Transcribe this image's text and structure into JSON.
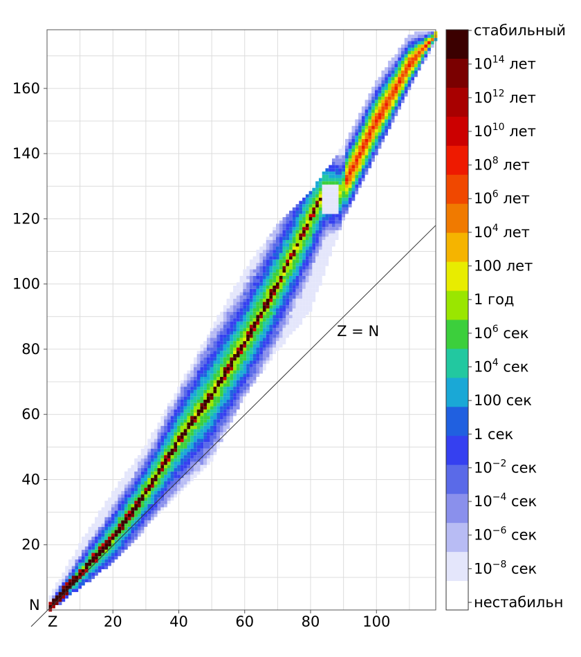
{
  "chart_data": {
    "type": "heatmap",
    "title": "",
    "xlabel": "Z",
    "ylabel": "N",
    "xlim": [
      0,
      118
    ],
    "ylim": [
      0,
      178
    ],
    "x_ticks": [
      20,
      40,
      60,
      80,
      100
    ],
    "y_ticks": [
      20,
      40,
      60,
      80,
      100,
      120,
      140,
      160
    ],
    "grid": true,
    "reference_line": {
      "label": "Z = N",
      "equation": "N = Z"
    },
    "colorbar": {
      "labels": [
        {
          "base": "стабильный",
          "sup": ""
        },
        {
          "base": "10",
          "sup": "14",
          "unit": " лет"
        },
        {
          "base": "10",
          "sup": "12",
          "unit": " лет"
        },
        {
          "base": "10",
          "sup": "10",
          "unit": " лет"
        },
        {
          "base": "10",
          "sup": "8",
          "unit": " лет"
        },
        {
          "base": "10",
          "sup": "6",
          "unit": " лет"
        },
        {
          "base": "10",
          "sup": "4",
          "unit": " лет"
        },
        {
          "base": "100 лет",
          "sup": ""
        },
        {
          "base": "1 год",
          "sup": ""
        },
        {
          "base": "10",
          "sup": "6",
          "unit": " сек"
        },
        {
          "base": "10",
          "sup": "4",
          "unit": " сек"
        },
        {
          "base": "100 сек",
          "sup": ""
        },
        {
          "base": "1 сек",
          "sup": ""
        },
        {
          "base": "10",
          "sup": "−2",
          "unit": " сек"
        },
        {
          "base": "10",
          "sup": "−4",
          "unit": " сек"
        },
        {
          "base": "10",
          "sup": "−6",
          "unit": " сек"
        },
        {
          "base": "10",
          "sup": "−8",
          "unit": " сек"
        },
        {
          "base": "нестабильн",
          "sup": ""
        }
      ],
      "colors": [
        "#3b0000",
        "#7a0000",
        "#a80000",
        "#cc0000",
        "#ee1a00",
        "#f04800",
        "#f07a00",
        "#f5b400",
        "#e8ec00",
        "#9ae600",
        "#3ccf3c",
        "#22c8a0",
        "#1aa8d6",
        "#2060e0",
        "#3540f0",
        "#5a6ae8",
        "#8a90ec",
        "#b8bcf4",
        "#e4e6fb",
        "#ffffff"
      ]
    },
    "band": {
      "description_series": "nuclide half-life by proton number Z and neutron number N",
      "stable_line": [
        [
          1,
          1
        ],
        [
          10,
          11
        ],
        [
          20,
          22
        ],
        [
          30,
          36
        ],
        [
          40,
          52
        ],
        [
          50,
          66
        ],
        [
          60,
          82
        ],
        [
          70,
          100
        ],
        [
          80,
          120
        ],
        [
          83,
          126
        ]
      ],
      "proton_dripline": [
        [
          1,
          0
        ],
        [
          20,
          15
        ],
        [
          40,
          36
        ],
        [
          50,
          46
        ],
        [
          60,
          66
        ],
        [
          70,
          80
        ],
        [
          80,
          92
        ],
        [
          90,
          120
        ],
        [
          100,
          140
        ],
        [
          110,
          160
        ],
        [
          118,
          175
        ]
      ],
      "neutron_dripline": [
        [
          1,
          4
        ],
        [
          10,
          20
        ],
        [
          20,
          36
        ],
        [
          30,
          50
        ],
        [
          40,
          68
        ],
        [
          50,
          86
        ],
        [
          60,
          104
        ],
        [
          70,
          118
        ],
        [
          80,
          128
        ],
        [
          90,
          142
        ],
        [
          100,
          162
        ],
        [
          110,
          176
        ],
        [
          118,
          178
        ]
      ]
    }
  }
}
